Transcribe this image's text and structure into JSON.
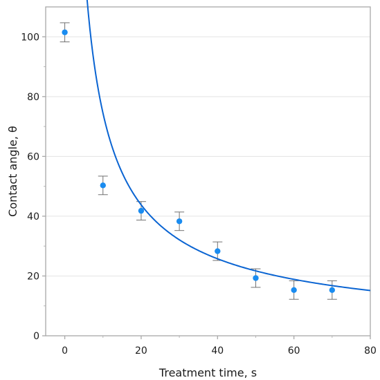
{
  "chart_data": {
    "type": "scatter",
    "title": "",
    "xlabel": "Treatment time, s",
    "ylabel": "Contact angle, θ",
    "xlim": [
      -5,
      80
    ],
    "ylim": [
      0,
      110
    ],
    "xticks": [
      0,
      20,
      40,
      60,
      80
    ],
    "yticks": [
      0,
      20,
      40,
      60,
      80,
      100
    ],
    "grid": true,
    "legend": "none",
    "series": [
      {
        "type": "scatter",
        "color": "#1a8cf0",
        "x": [
          0,
          10,
          20,
          30,
          40,
          50,
          60,
          70
        ],
        "y": [
          101.5,
          50.3,
          41.8,
          38.3,
          28.3,
          19.3,
          15.3,
          15.3
        ],
        "error": [
          3.2,
          3.1,
          3.1,
          3.1,
          3.1,
          3.1,
          3.1,
          3.1
        ]
      },
      {
        "type": "line",
        "color": "#0a64d2",
        "fit": {
          "form": "a * x^b",
          "a": 434.5,
          "b": -0.766
        },
        "x_range": [
          4.3,
          80
        ]
      }
    ]
  }
}
